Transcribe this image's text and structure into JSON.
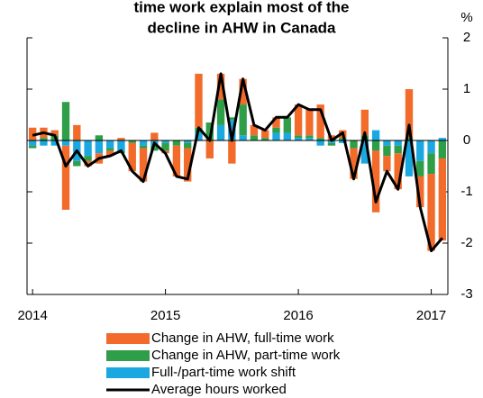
{
  "chart_data": {
    "type": "bar",
    "title": [
      "time work explain most of the",
      "decline in AHW in Canada"
    ],
    "y_axis_label": "%",
    "categories": [
      "2014",
      null,
      null,
      null,
      null,
      null,
      null,
      null,
      null,
      null,
      null,
      null,
      "2015",
      null,
      null,
      null,
      null,
      null,
      null,
      null,
      null,
      null,
      null,
      null,
      "2016",
      null,
      null,
      null,
      null,
      null,
      null,
      null,
      null,
      null,
      null,
      null,
      "2017",
      null
    ],
    "ylim": [
      -3,
      2
    ],
    "yticks": [
      -3,
      -2,
      -1,
      0,
      1,
      2
    ],
    "series": [
      {
        "name": "Change in AHW, full-time work",
        "color": "#f26b2a",
        "type": "bar",
        "values": [
          0.25,
          0.2,
          0.1,
          -1.25,
          0.3,
          -0.1,
          -0.2,
          -0.1,
          0.05,
          -0.55,
          -0.65,
          0.15,
          -0.05,
          -0.6,
          -0.65,
          1.05,
          -0.35,
          0.5,
          -0.45,
          0.5,
          0.2,
          0.15,
          0.2,
          0.0,
          0.6,
          0.5,
          0.65,
          0.1,
          0.15,
          -0.6,
          0.5,
          -1.2,
          -0.3,
          -0.7,
          0.95,
          -0.6,
          -1.5,
          -1.6
        ]
      },
      {
        "name": "Change in AHW, part-time work",
        "color": "#2e9e48",
        "type": "bar",
        "values": [
          -0.05,
          0.05,
          0.1,
          0.75,
          -0.1,
          -0.1,
          0.1,
          -0.05,
          -0.05,
          -0.05,
          -0.05,
          -0.1,
          -0.15,
          -0.1,
          -0.1,
          0.1,
          0.35,
          0.5,
          0.05,
          0.6,
          0.1,
          0.05,
          0.1,
          0.3,
          0.05,
          0.05,
          0.05,
          -0.05,
          0.05,
          -0.15,
          0.1,
          -0.2,
          -0.2,
          -0.15,
          0.05,
          -0.3,
          -0.4,
          -0.35
        ]
      },
      {
        "name": "Full-/part-time work shift",
        "color": "#1ba8e0",
        "type": "bar",
        "values": [
          -0.1,
          -0.1,
          -0.1,
          -0.1,
          -0.4,
          -0.3,
          -0.25,
          -0.15,
          -0.2,
          0.0,
          -0.1,
          -0.1,
          -0.05,
          0.0,
          -0.05,
          0.15,
          0.0,
          0.3,
          0.4,
          0.1,
          0.0,
          0.0,
          0.15,
          0.15,
          0.05,
          0.05,
          -0.1,
          -0.05,
          -0.05,
          0.0,
          -0.45,
          0.2,
          -0.1,
          -0.1,
          -0.7,
          -0.4,
          -0.25,
          0.05
        ]
      },
      {
        "name": "Average hours worked",
        "color": "#000000",
        "type": "line",
        "values": [
          0.1,
          0.15,
          0.1,
          -0.5,
          -0.2,
          -0.5,
          -0.35,
          -0.3,
          -0.2,
          -0.6,
          -0.8,
          -0.05,
          -0.25,
          -0.7,
          -0.75,
          0.25,
          0.0,
          1.3,
          0.0,
          1.2,
          0.3,
          0.2,
          0.45,
          0.45,
          0.7,
          0.6,
          0.6,
          0.0,
          0.15,
          -0.75,
          0.15,
          -1.2,
          -0.6,
          -0.95,
          0.3,
          -1.3,
          -2.15,
          -1.9
        ]
      }
    ]
  }
}
